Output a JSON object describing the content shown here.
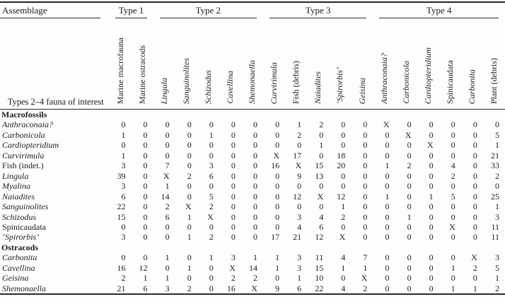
{
  "table": {
    "corner_label": "Assemblage",
    "corner_sub_label": "Types 2–4 fauna of interest",
    "groups": [
      {
        "label": "Type 1",
        "span": 2
      },
      {
        "label": "Type 2",
        "span": 5
      },
      {
        "label": "Type 3",
        "span": 5
      },
      {
        "label": "Type 4",
        "span": 6
      }
    ],
    "columns": [
      {
        "label": "Marine macrofauna",
        "italic": false
      },
      {
        "label": "Marine ostracods",
        "italic": false
      },
      {
        "label": "Lingula",
        "italic": true
      },
      {
        "label": "Sanguinolites",
        "italic": true
      },
      {
        "label": "Schizodus",
        "italic": true
      },
      {
        "label": "Cavellina",
        "italic": true
      },
      {
        "label": "Shemonaella",
        "italic": true
      },
      {
        "label": "Curvirimula",
        "italic": true
      },
      {
        "label": "Fish (debris)",
        "italic": false
      },
      {
        "label": "Naiadites",
        "italic": true
      },
      {
        "label": "‘Spirorbis’",
        "italic": true
      },
      {
        "label": "Geisina",
        "italic": true
      },
      {
        "label": "Anthraconaia?",
        "italic": true
      },
      {
        "label": "Carbonicola",
        "italic": true
      },
      {
        "label": "Cardiopteridium",
        "italic": true
      },
      {
        "label": "Spinicaudata",
        "italic": false
      },
      {
        "label": "Carbonita",
        "italic": true
      },
      {
        "label": "Plant (debris)",
        "italic": false
      }
    ],
    "sections": [
      {
        "label": "Macrofossils",
        "rows": [
          {
            "label": "Anthraconaia?",
            "italic": true,
            "values": [
              "0",
              "0",
              "0",
              "0",
              "0",
              "0",
              "0",
              "0",
              "1",
              "2",
              "0",
              "0",
              "X",
              "0",
              "0",
              "0",
              "0",
              "0"
            ]
          },
          {
            "label": "Carbonicola",
            "italic": true,
            "values": [
              "1",
              "0",
              "0",
              "0",
              "1",
              "0",
              "0",
              "0",
              "2",
              "0",
              "0",
              "0",
              "0",
              "X",
              "0",
              "0",
              "0",
              "5"
            ]
          },
          {
            "label": "Cardiopteridium",
            "italic": true,
            "values": [
              "0",
              "0",
              "0",
              "0",
              "0",
              "0",
              "0",
              "0",
              "0",
              "1",
              "0",
              "0",
              "0",
              "0",
              "X",
              "0",
              "0",
              "1"
            ]
          },
          {
            "label": "Curvirimula",
            "italic": true,
            "values": [
              "1",
              "0",
              "0",
              "0",
              "0",
              "0",
              "0",
              "X",
              "17",
              "0",
              "18",
              "0",
              "0",
              "0",
              "0",
              "0",
              "0",
              "21"
            ]
          },
          {
            "label": "Fish (indet.)",
            "italic": false,
            "values": [
              "3",
              "0",
              "7",
              "0",
              "3",
              "0",
              "0",
              "16",
              "X",
              "15",
              "20",
              "0",
              "1",
              "2",
              "0",
              "4",
              "0",
              "33"
            ]
          },
          {
            "label": "Lingula",
            "italic": true,
            "values": [
              "39",
              "0",
              "X",
              "2",
              "6",
              "0",
              "0",
              "0",
              "9",
              "13",
              "0",
              "0",
              "0",
              "0",
              "0",
              "2",
              "0",
              "2"
            ]
          },
          {
            "label": "Myalina",
            "italic": true,
            "values": [
              "3",
              "0",
              "1",
              "0",
              "0",
              "0",
              "0",
              "0",
              "0",
              "0",
              "0",
              "0",
              "0",
              "0",
              "0",
              "0",
              "0",
              "0"
            ]
          },
          {
            "label": "Naiadites",
            "italic": true,
            "values": [
              "6",
              "0",
              "14",
              "0",
              "5",
              "0",
              "0",
              "0",
              "12",
              "X",
              "12",
              "0",
              "1",
              "0",
              "1",
              "5",
              "0",
              "25"
            ]
          },
          {
            "label": "Sanguinolites",
            "italic": true,
            "values": [
              "22",
              "0",
              "2",
              "X",
              "2",
              "0",
              "0",
              "0",
              "0",
              "0",
              "1",
              "0",
              "0",
              "0",
              "0",
              "0",
              "0",
              "1"
            ]
          },
          {
            "label": "Schizodus",
            "italic": true,
            "values": [
              "15",
              "0",
              "6",
              "1",
              "X",
              "0",
              "0",
              "0",
              "3",
              "4",
              "2",
              "0",
              "0",
              "1",
              "0",
              "0",
              "0",
              "3"
            ]
          },
          {
            "label": "Spinicaudata",
            "italic": false,
            "values": [
              "0",
              "0",
              "0",
              "0",
              "0",
              "0",
              "0",
              "0",
              "4",
              "6",
              "0",
              "0",
              "0",
              "0",
              "0",
              "X",
              "0",
              "11"
            ]
          },
          {
            "label": "‘Spirorbis’",
            "italic": true,
            "values": [
              "3",
              "0",
              "0",
              "1",
              "2",
              "0",
              "0",
              "17",
              "21",
              "12",
              "X",
              "0",
              "0",
              "0",
              "0",
              "0",
              "0",
              "11"
            ]
          }
        ]
      },
      {
        "label": "Ostracods",
        "rows": [
          {
            "label": "Carbonita",
            "italic": true,
            "values": [
              "0",
              "0",
              "1",
              "0",
              "1",
              "3",
              "1",
              "1",
              "3",
              "11",
              "4",
              "7",
              "0",
              "0",
              "0",
              "0",
              "X",
              "3"
            ]
          },
          {
            "label": "Cavellina",
            "italic": true,
            "values": [
              "16",
              "12",
              "0",
              "1",
              "0",
              "X",
              "14",
              "1",
              "3",
              "15",
              "1",
              "1",
              "0",
              "0",
              "0",
              "1",
              "2",
              "5"
            ]
          },
          {
            "label": "Geisina",
            "italic": true,
            "values": [
              "2",
              "1",
              "1",
              "0",
              "0",
              "2",
              "2",
              "0",
              "1",
              "10",
              "0",
              "X",
              "0",
              "0",
              "0",
              "0",
              "0",
              "1"
            ]
          },
          {
            "label": "Shemonaella",
            "italic": true,
            "values": [
              "21",
              "6",
              "3",
              "2",
              "0",
              "16",
              "X",
              "9",
              "6",
              "22",
              "4",
              "2",
              "0",
              "0",
              "0",
              "1",
              "1",
              "2"
            ]
          }
        ]
      }
    ]
  }
}
